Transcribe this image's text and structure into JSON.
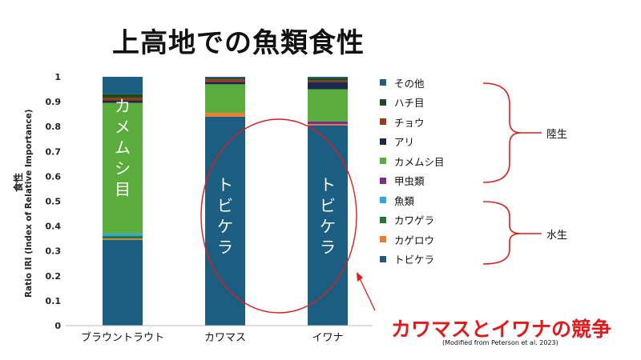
{
  "title": "上高地での魚類食性",
  "annotations": {
    "competition": "カワマスとイワナの競争",
    "source": "(Modified from Peterson et al. 2023)",
    "terrestrial_group": "陸生",
    "aquatic_group": "水生"
  },
  "chart_data": {
    "type": "bar",
    "stacked": true,
    "ylabel_line1": "食性",
    "ylabel_line2": "Ratio IRI (Index of Relative Importance)",
    "ylim": [
      0,
      1
    ],
    "yticks": [
      "0",
      "0.1",
      "0.2",
      "0.3",
      "0.4",
      "0.5",
      "0.6",
      "0.7",
      "0.8",
      "0.9",
      "1"
    ],
    "categories": [
      "ブラウントラウト",
      "カワマス",
      "イワナ"
    ],
    "series": [
      {
        "name": "トビケラ",
        "color": "#1b5e82",
        "values": [
          0.345,
          0.84,
          0.805
        ]
      },
      {
        "name": "カゲロウ",
        "color": "#ec7c30",
        "values": [
          0.005,
          0.015,
          0.005
        ]
      },
      {
        "name": "カワゲラ",
        "color": "#1e7a2e",
        "values": [
          0.01,
          0.0,
          0.0
        ]
      },
      {
        "name": "魚類",
        "color": "#2ea7e0",
        "values": [
          0.01,
          0.0,
          0.0
        ]
      },
      {
        "name": "甲虫類",
        "color": "#7b2d8e",
        "values": [
          0.0,
          0.0,
          0.01
        ]
      },
      {
        "name": "カメムシ目",
        "color": "#5aad3c",
        "values": [
          0.525,
          0.115,
          0.13
        ]
      },
      {
        "name": "アリ",
        "color": "#1b2a4a",
        "values": [
          0.01,
          0.01,
          0.03
        ]
      },
      {
        "name": "チョウ",
        "color": "#a0361a",
        "values": [
          0.01,
          0.01,
          0.005
        ]
      },
      {
        "name": "ハチ目",
        "color": "#1e4a1a",
        "values": [
          0.015,
          0.005,
          0.01
        ]
      },
      {
        "name": "その他",
        "color": "#1b5e82",
        "values": [
          0.07,
          0.005,
          0.005
        ]
      }
    ],
    "bar_labels": [
      {
        "category": "ブラウントラウト",
        "text": "カメムシ目",
        "value": 0.715
      },
      {
        "category": "カワマス",
        "text": "トビケラ",
        "value": 0.44
      },
      {
        "category": "イワナ",
        "text": "トビケラ",
        "value": 0.44
      }
    ],
    "legend": [
      {
        "label": "その他",
        "color": "#1b5e82"
      },
      {
        "label": "ハチ目",
        "color": "#1e4a1a"
      },
      {
        "label": "チョウ",
        "color": "#a0361a"
      },
      {
        "label": "アリ",
        "color": "#1b2a4a"
      },
      {
        "label": "カメムシ目",
        "color": "#5aad3c"
      },
      {
        "label": "甲虫類",
        "color": "#7b2d8e"
      },
      {
        "label": "魚類",
        "color": "#2ea7e0"
      },
      {
        "label": "カワゲラ",
        "color": "#1e7a2e"
      },
      {
        "label": "カゲロウ",
        "color": "#ec7c30"
      },
      {
        "label": "トビケラ",
        "color": "#1b5e82"
      }
    ]
  }
}
